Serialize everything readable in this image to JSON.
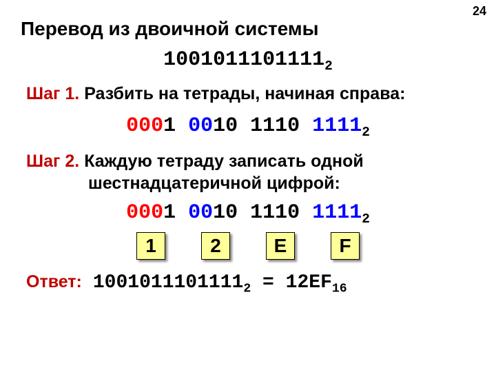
{
  "page_number": "24",
  "title": "Перевод из двоичной системы",
  "binary_input": {
    "value": "1001011101111",
    "base": "2"
  },
  "steps": {
    "s1_label": "Шаг 1.",
    "s1_text": "Разбить на тетрады, начиная справа:",
    "s2_label": "Шаг 2.",
    "s2_text_a": "Каждую тетраду записать одной",
    "s2_text_b": "шестнадцатеричной цифрой:"
  },
  "tetrads": {
    "groups": [
      {
        "parts": [
          {
            "t": "000",
            "c": "red"
          },
          {
            "t": "1",
            "c": "black"
          }
        ]
      },
      {
        "parts": [
          {
            "t": "00",
            "c": "blue"
          },
          {
            "t": "10",
            "c": "black"
          }
        ]
      },
      {
        "parts": [
          {
            "t": "1110",
            "c": "black"
          }
        ]
      },
      {
        "parts": [
          {
            "t": "1111",
            "c": "blue"
          }
        ]
      }
    ],
    "base": "2"
  },
  "hex_digits": [
    "1",
    "2",
    "E",
    "F"
  ],
  "answer": {
    "label": "Ответ:",
    "bin": "1001011101111",
    "bin_base": "2",
    "eq": " = ",
    "hex": "12EF",
    "hex_base": "16"
  },
  "style": {
    "colors": {
      "red": "#ff0000",
      "blue": "#0000ff",
      "black": "#000000",
      "step_label": "#c00000",
      "hex_box_bg": "#ffff99",
      "background": "#ffffff"
    },
    "fonts": {
      "title_size_pt": 21,
      "step_size_pt": 19,
      "mono_size_pt": 22,
      "mono_family": "Courier New",
      "body_family": "Arial"
    }
  }
}
